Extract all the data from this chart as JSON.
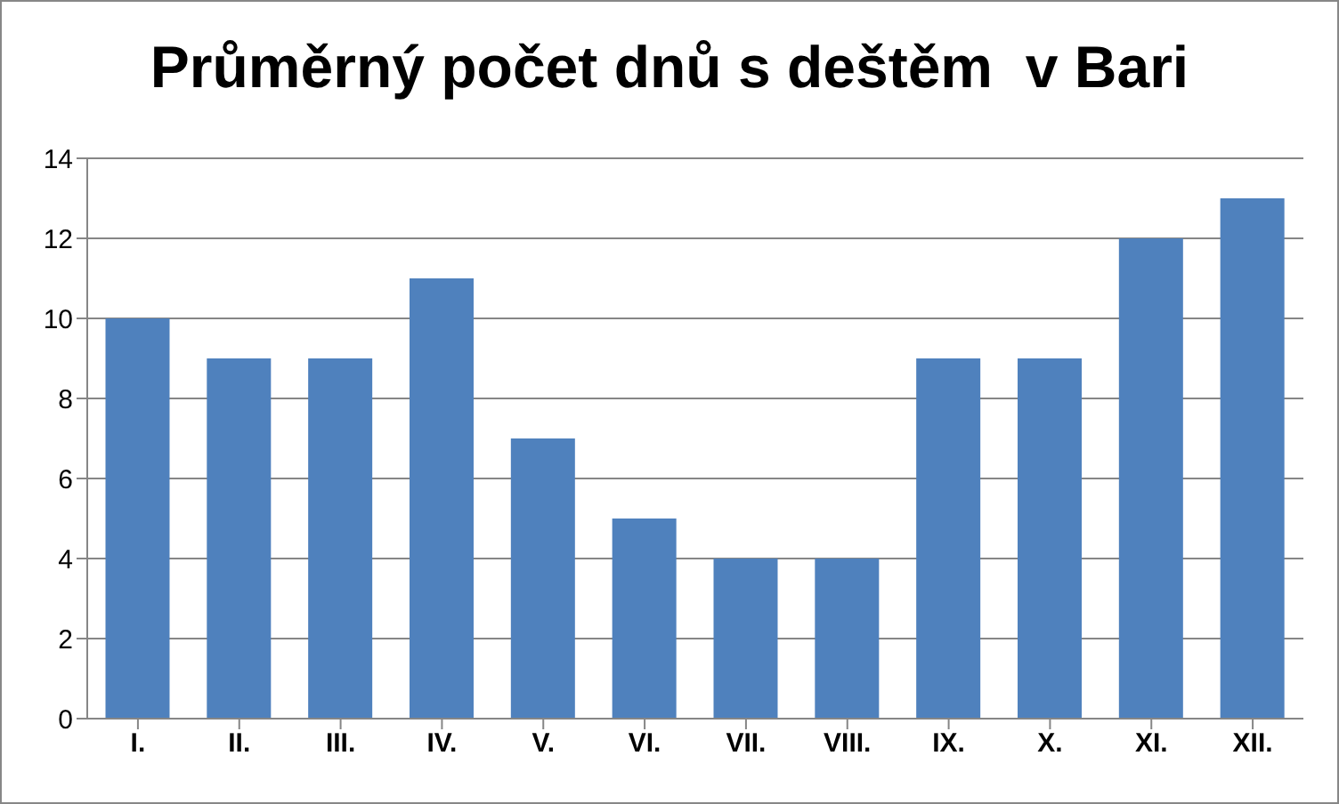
{
  "chart_data": {
    "type": "bar",
    "title": "Průměrný počet dnů s deštěm  v Bari",
    "categories": [
      "I.",
      "II.",
      "III.",
      "IV.",
      "V.",
      "VI.",
      "VII.",
      "VIII.",
      "IX.",
      "X.",
      "XI.",
      "XII."
    ],
    "values": [
      10,
      9,
      9,
      11,
      7,
      5,
      4,
      4,
      9,
      9,
      12,
      13
    ],
    "color": "#4f81bd",
    "ylim": [
      0,
      14
    ],
    "yticks": [
      0,
      2,
      4,
      6,
      8,
      10,
      12,
      14
    ],
    "grid": "y"
  }
}
